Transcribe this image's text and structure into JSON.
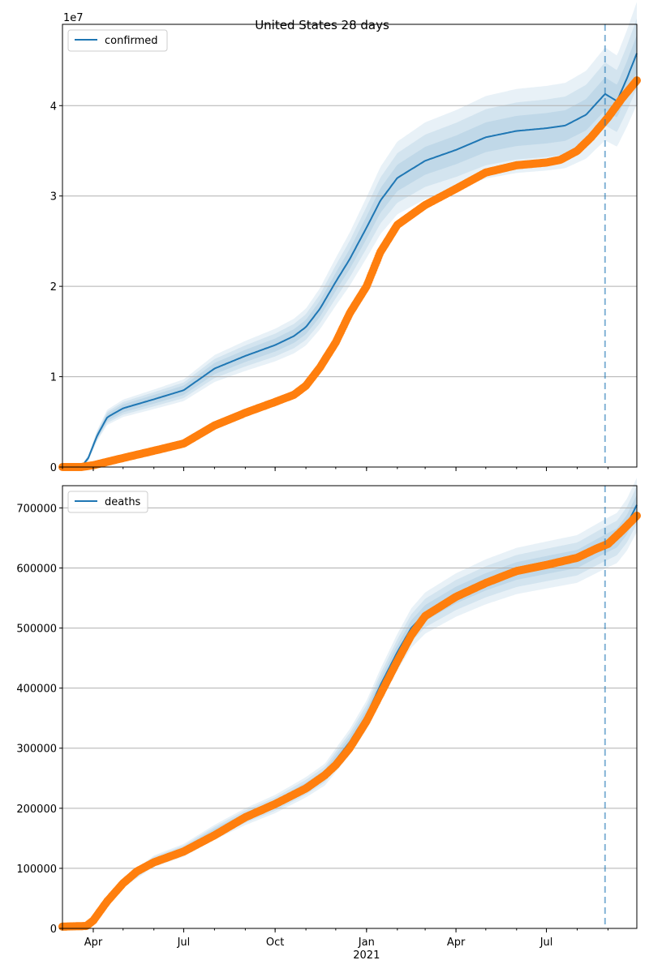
{
  "title": "United States 28 days",
  "colors": {
    "model": "#1f77b4",
    "observed": "#ff7f0e",
    "band": "#1f77b4",
    "grid": "#b0b0b0",
    "forecast_line": "#1f77b4"
  },
  "forecast_start_date": "2021-08-29",
  "x_axis": {
    "range": [
      "2020-03-01",
      "2021-09-30"
    ],
    "ticks": [
      {
        "date": "2020-04-01",
        "label": "Apr"
      },
      {
        "date": "2020-07-01",
        "label": "Jul"
      },
      {
        "date": "2020-10-01",
        "label": "Oct"
      },
      {
        "date": "2021-01-01",
        "label": "Jan"
      },
      {
        "date": "2021-04-01",
        "label": "Apr"
      },
      {
        "date": "2021-07-01",
        "label": "Jul"
      }
    ],
    "year_label": {
      "date": "2021-01-01",
      "label": "2021"
    }
  },
  "chart_data": [
    {
      "type": "line",
      "legend": "confirmed",
      "legend_position": "top-left",
      "grid": "y",
      "ylim": [
        0,
        49000000
      ],
      "offset_text": "1e7",
      "yticks": [
        {
          "value": 0,
          "label": "0"
        },
        {
          "value": 10000000,
          "label": "1"
        },
        {
          "value": 20000000,
          "label": "2"
        },
        {
          "value": 30000000,
          "label": "3"
        },
        {
          "value": 40000000,
          "label": "4"
        }
      ],
      "model": {
        "x": [
          "2020-03-01",
          "2020-03-20",
          "2020-03-27",
          "2020-04-05",
          "2020-04-15",
          "2020-05-01",
          "2020-06-01",
          "2020-07-01",
          "2020-08-01",
          "2020-09-01",
          "2020-10-01",
          "2020-10-20",
          "2020-11-01",
          "2020-11-15",
          "2020-12-01",
          "2020-12-15",
          "2021-01-01",
          "2021-01-15",
          "2021-02-01",
          "2021-03-01",
          "2021-04-01",
          "2021-05-01",
          "2021-06-01",
          "2021-07-01",
          "2021-07-20",
          "2021-08-10",
          "2021-08-29",
          "2021-09-10",
          "2021-09-20",
          "2021-09-30"
        ],
        "y": [
          0,
          0,
          1000000,
          3500000,
          5500000,
          6500000,
          7500000,
          8500000,
          10900000,
          12300000,
          13500000,
          14500000,
          15500000,
          17500000,
          20500000,
          23000000,
          26500000,
          29500000,
          32000000,
          33900000,
          35100000,
          36500000,
          37200000,
          37500000,
          37800000,
          39000000,
          41300000,
          40500000,
          43000000,
          45800000
        ],
        "band_half_widths": [
          0.12,
          0.08,
          0.04
        ]
      },
      "observed": {
        "x": [
          "2020-03-01",
          "2020-03-20",
          "2020-04-01",
          "2020-05-01",
          "2020-06-01",
          "2020-07-01",
          "2020-08-01",
          "2020-09-01",
          "2020-10-01",
          "2020-10-20",
          "2020-11-01",
          "2020-11-15",
          "2020-12-01",
          "2020-12-15",
          "2021-01-01",
          "2021-01-15",
          "2021-02-01",
          "2021-03-01",
          "2021-04-01",
          "2021-05-01",
          "2021-06-01",
          "2021-07-01",
          "2021-07-15",
          "2021-08-01",
          "2021-08-15",
          "2021-09-01",
          "2021-09-15",
          "2021-09-30"
        ],
        "y": [
          0,
          0,
          200000,
          1000000,
          1800000,
          2600000,
          4600000,
          6000000,
          7200000,
          8000000,
          9000000,
          11000000,
          13800000,
          17000000,
          20000000,
          23800000,
          26800000,
          29000000,
          30800000,
          32600000,
          33400000,
          33700000,
          34000000,
          35000000,
          36500000,
          38700000,
          40800000,
          42800000
        ]
      }
    },
    {
      "type": "line",
      "legend": "deaths",
      "legend_position": "top-left",
      "grid": "y",
      "ylim": [
        0,
        737000
      ],
      "yticks": [
        {
          "value": 0,
          "label": "0"
        },
        {
          "value": 100000,
          "label": "100000"
        },
        {
          "value": 200000,
          "label": "200000"
        },
        {
          "value": 300000,
          "label": "300000"
        },
        {
          "value": 400000,
          "label": "400000"
        },
        {
          "value": 500000,
          "label": "500000"
        },
        {
          "value": 600000,
          "label": "600000"
        },
        {
          "value": 700000,
          "label": "700000"
        }
      ],
      "model": {
        "x": [
          "2020-03-01",
          "2020-03-20",
          "2020-04-01",
          "2020-04-15",
          "2020-05-01",
          "2020-06-01",
          "2020-07-01",
          "2020-08-01",
          "2020-09-01",
          "2020-10-01",
          "2020-11-01",
          "2020-11-20",
          "2020-12-01",
          "2020-12-15",
          "2021-01-01",
          "2021-01-15",
          "2021-02-01",
          "2021-02-15",
          "2021-03-01",
          "2021-04-01",
          "2021-05-01",
          "2021-06-01",
          "2021-07-01",
          "2021-08-01",
          "2021-08-29",
          "2021-09-10",
          "2021-09-20",
          "2021-09-30"
        ],
        "y": [
          0,
          0,
          8000,
          40000,
          75000,
          112000,
          130000,
          160000,
          186000,
          207000,
          235000,
          256000,
          280000,
          310000,
          355000,
          405000,
          460000,
          500000,
          525000,
          555000,
          577000,
          595000,
          605000,
          615000,
          640000,
          650000,
          672000,
          705000
        ],
        "band_half_widths": [
          0.06,
          0.04,
          0.02
        ]
      },
      "observed": {
        "x": [
          "2020-03-01",
          "2020-03-25",
          "2020-04-01",
          "2020-04-15",
          "2020-05-01",
          "2020-05-15",
          "2020-06-01",
          "2020-07-01",
          "2020-08-01",
          "2020-09-01",
          "2020-10-01",
          "2020-11-01",
          "2020-11-20",
          "2020-12-01",
          "2020-12-15",
          "2021-01-01",
          "2021-01-15",
          "2021-02-01",
          "2021-02-15",
          "2021-03-01",
          "2021-04-01",
          "2021-05-01",
          "2021-06-01",
          "2021-07-01",
          "2021-08-01",
          "2021-08-20",
          "2021-09-01",
          "2021-09-15",
          "2021-09-30"
        ],
        "y": [
          3000,
          4000,
          13000,
          45000,
          75000,
          95000,
          110000,
          128000,
          155000,
          185000,
          207000,
          233000,
          255000,
          272000,
          300000,
          345000,
          390000,
          445000,
          488000,
          520000,
          552000,
          575000,
          595000,
          605000,
          617000,
          632000,
          640000,
          662000,
          687000
        ]
      }
    }
  ]
}
